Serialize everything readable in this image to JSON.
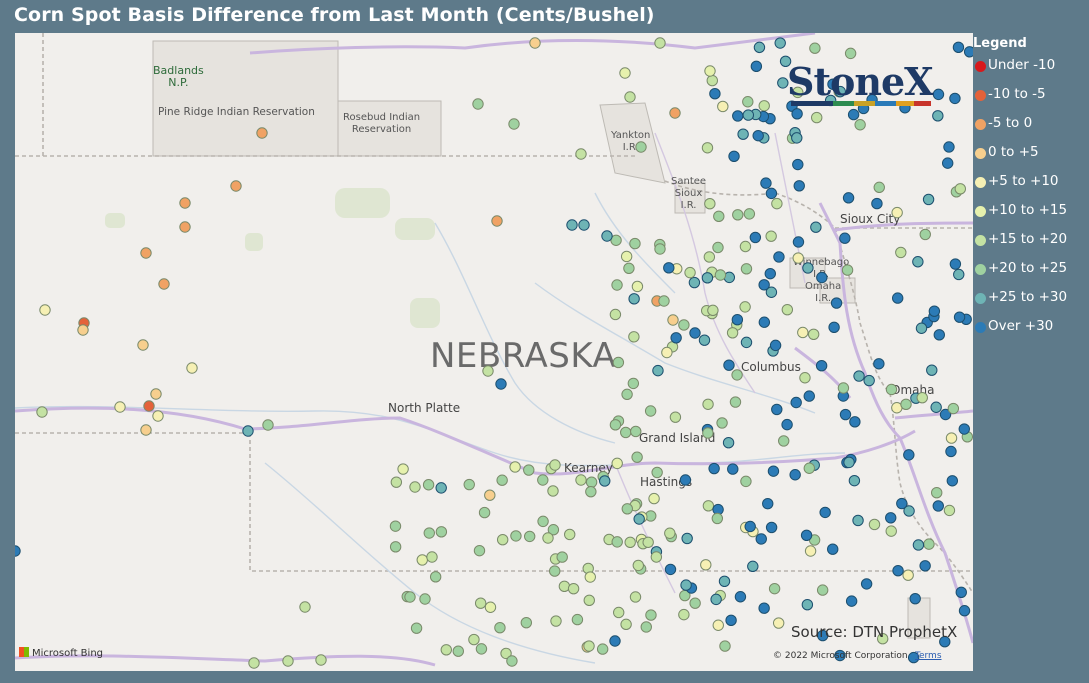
{
  "title": "Corn Spot Basis Difference from Last Month (Cents/Bushel)",
  "legend": {
    "title": "Legend",
    "items": [
      {
        "label": "Under -10",
        "color": "#d7191c"
      },
      {
        "label": "-10 to -5",
        "color": "#e4623a"
      },
      {
        "label": "-5 to 0",
        "color": "#f0a264"
      },
      {
        "label": "0 to +5",
        "color": "#f7cf8e"
      },
      {
        "label": "+5 to +10",
        "color": "#f6f0b4"
      },
      {
        "label": "+10 to +15",
        "color": "#e6f1ad"
      },
      {
        "label": "+15 to +20",
        "color": "#c4e2a3"
      },
      {
        "label": "+20 to +25",
        "color": "#9fd1a0"
      },
      {
        "label": "+25 to +30",
        "color": "#6eb4b5"
      },
      {
        "label": "Over +30",
        "color": "#2c7bb6"
      }
    ]
  },
  "map": {
    "state_label": "NEBRASKA",
    "places": {
      "badlands": "Badlands\nN.P.",
      "pine_ridge": "Pine Ridge Indian Reservation",
      "rosebud": "Rosebud Indian\nReservation",
      "yankton": "Yankton\nI.R.",
      "santee": "Santee\nSioux\nI.R.",
      "winnebago": "Winnebago\nI.R.",
      "omaha_ir": "Omaha\nI.R.",
      "sioux_city": "Sioux City",
      "north_platte": "North Platte",
      "columbus": "Columbus",
      "omaha": "Omaha",
      "grand_island": "Grand Island",
      "kearney": "Kearney",
      "hastings": "Hastings"
    },
    "brand": "StoneX",
    "source": "Source: DTN ProphetX",
    "attribution": "Microsoft Bing",
    "copyright": "© 2022 Microsoft Corporation",
    "terms": "Terms"
  }
}
